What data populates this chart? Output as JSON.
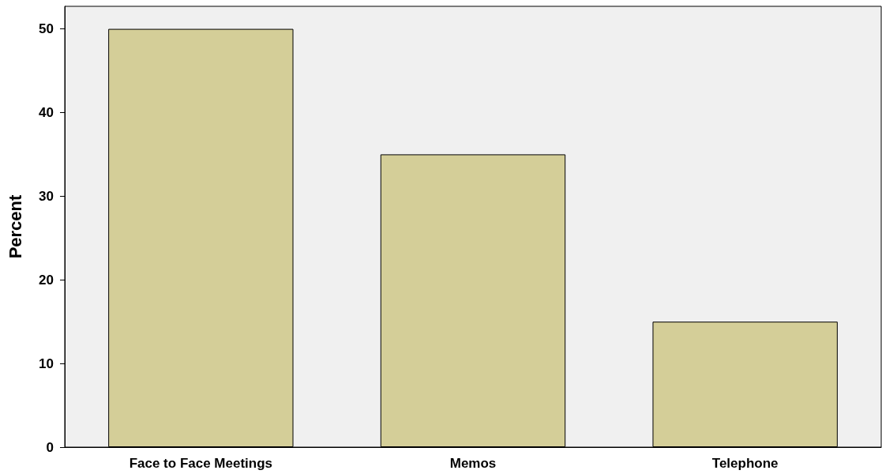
{
  "chart_data": {
    "type": "bar",
    "ylabel": "Percent",
    "categories": [
      "Face to Face Meetings",
      "Memos",
      "Telephone"
    ],
    "values": [
      50,
      35,
      15
    ],
    "color": "#d4ce98",
    "ylim": [
      0,
      52.7
    ],
    "yticks": [
      0,
      10,
      20,
      30,
      40,
      50
    ],
    "grid": false
  }
}
